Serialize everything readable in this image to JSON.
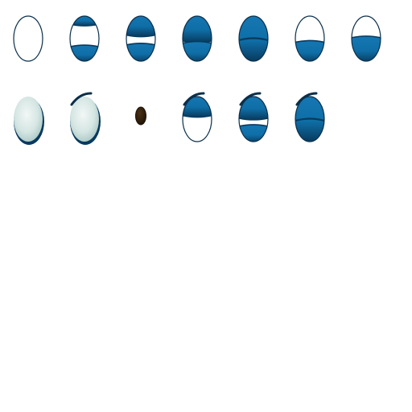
{
  "sprite_sheet": {
    "colors": {
      "lid": "#0f6ea6",
      "lid_dark": "#0a4f7e",
      "lid_deep": "#083a5e",
      "outline": "#0b2f4a",
      "sclera": "#ffffff",
      "pupil": "#3a2410",
      "pupil_dark": "#1f1306"
    },
    "rows": [
      {
        "name": "row-1",
        "frames": [
          {
            "name": "eye-open",
            "lid_top": 0,
            "lid_bottom": 0,
            "brow": false,
            "glass": false
          },
          {
            "name": "eye-half-lid",
            "lid_top": 0.18,
            "lid_bottom": 0.32,
            "brow": false,
            "glass": false
          },
          {
            "name": "eye-squint",
            "lid_top": 0.42,
            "lid_bottom": 0.36,
            "brow": false,
            "glass": false
          },
          {
            "name": "eye-narrow",
            "lid_top": 0.55,
            "lid_bottom": 0.4,
            "brow": false,
            "glass": false
          },
          {
            "name": "eye-closed",
            "lid_top": 1,
            "lid_bottom": 0,
            "brow": false,
            "glass": false
          },
          {
            "name": "eye-bottom-lid",
            "lid_top": 0,
            "lid_bottom": 0.42,
            "brow": false,
            "glass": false
          },
          {
            "name": "eye-bottom-lid-high",
            "lid_top": 0,
            "lid_bottom": 0.52,
            "brow": false,
            "glass": false
          }
        ]
      },
      {
        "name": "row-2",
        "frames": [
          {
            "name": "eye-glassy",
            "lid_top": 0,
            "lid_bottom": 0,
            "brow": false,
            "glass": true
          },
          {
            "name": "eye-glassy-brow",
            "lid_top": 0,
            "lid_bottom": 0,
            "brow": true,
            "glass": true
          },
          {
            "name": "pupil",
            "pupil": true
          },
          {
            "name": "eye-angry-half",
            "lid_top": 0.42,
            "lid_bottom": 0,
            "brow": true,
            "glass": false
          },
          {
            "name": "eye-angry-squint",
            "lid_top": 0.48,
            "lid_bottom": 0.34,
            "brow": true,
            "glass": false
          },
          {
            "name": "eye-angry-closed",
            "lid_top": 1,
            "lid_bottom": 0,
            "brow": true,
            "glass": false
          }
        ]
      }
    ]
  }
}
